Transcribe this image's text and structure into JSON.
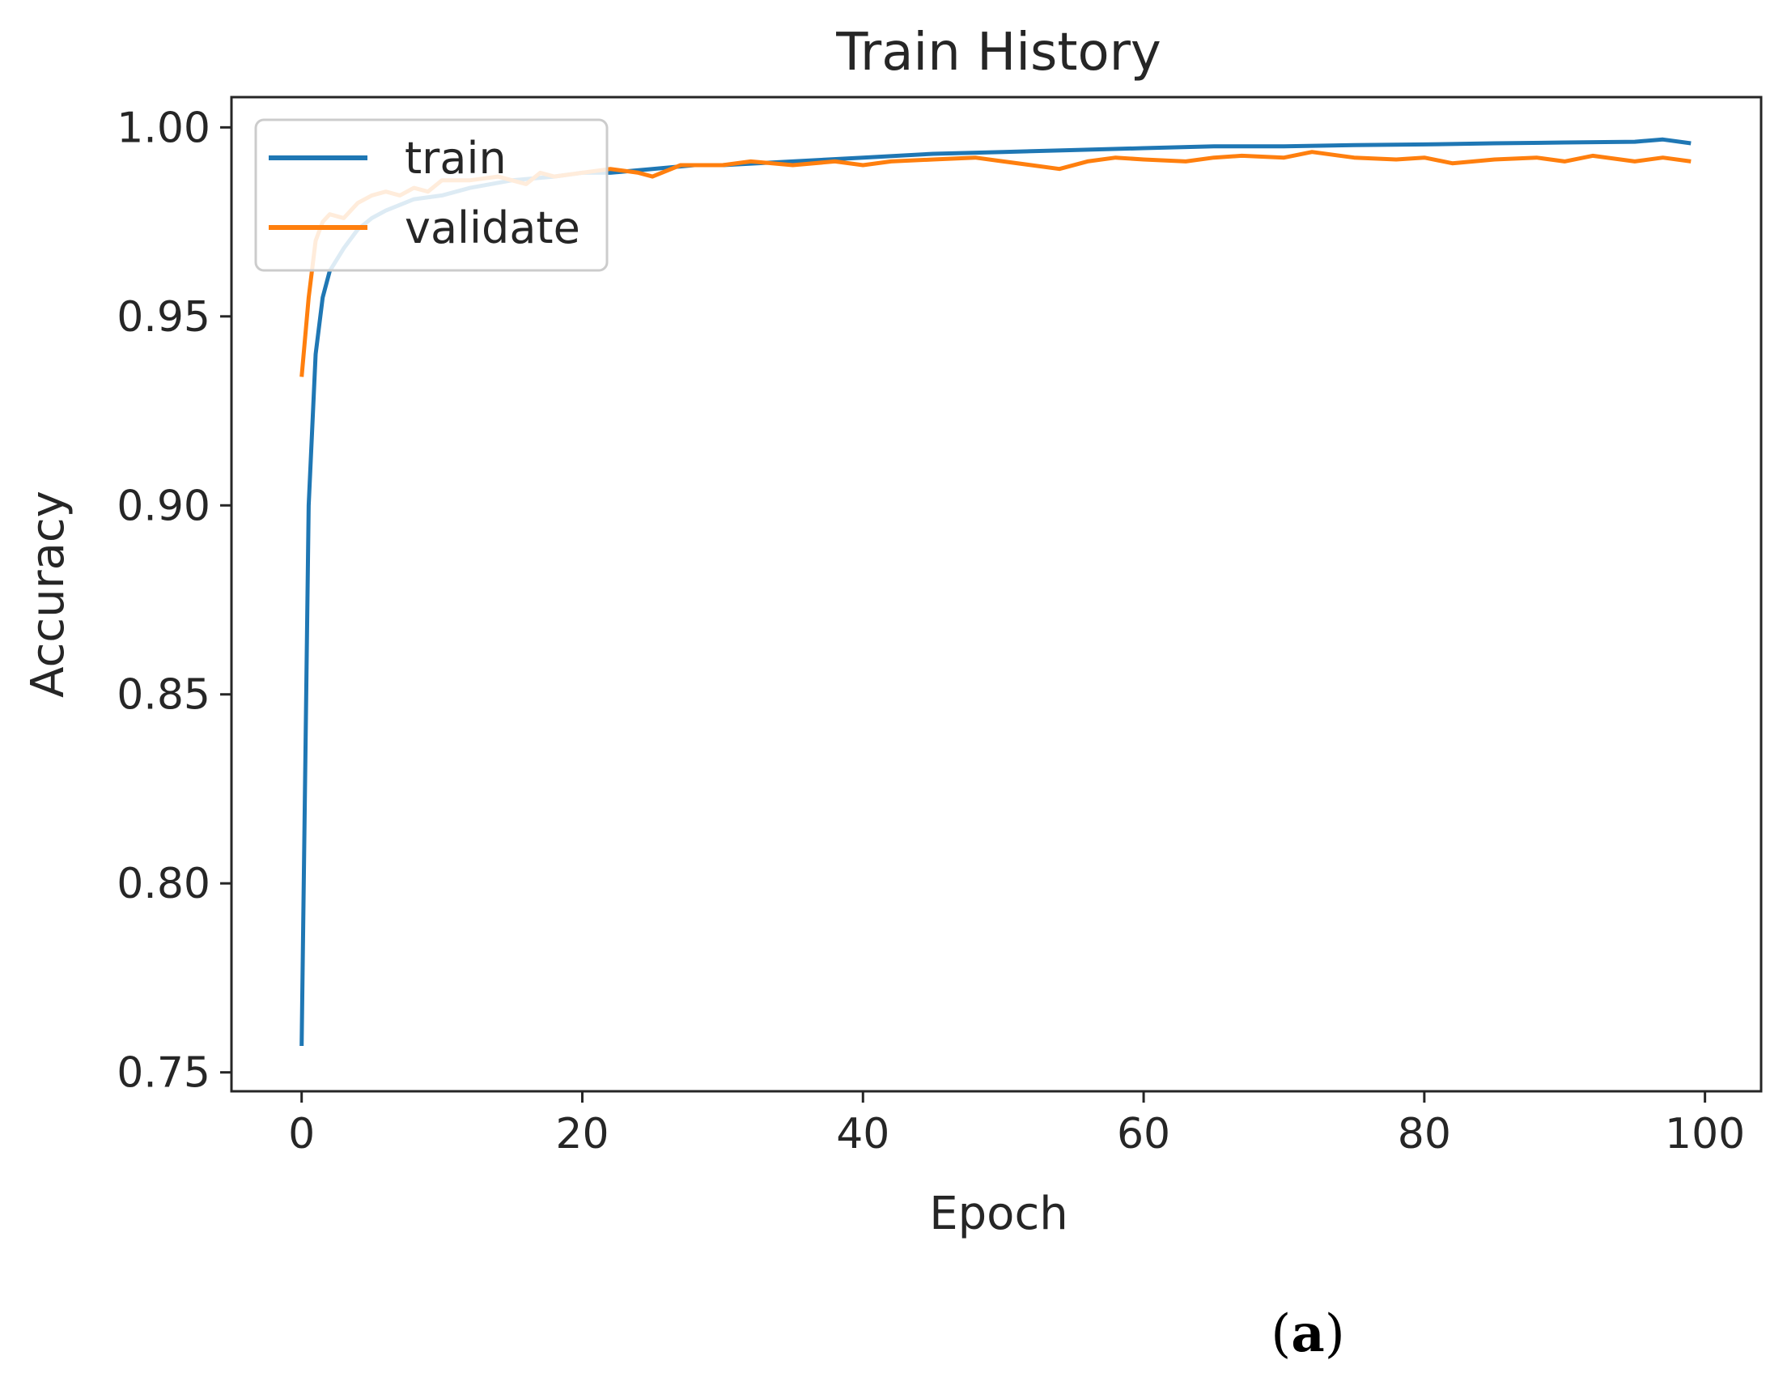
{
  "chart_data": {
    "type": "line",
    "title": "Train History",
    "xlabel": "Epoch",
    "ylabel": "Accuracy",
    "xlim": [
      -5,
      104
    ],
    "ylim": [
      0.745,
      1.008
    ],
    "xticks": [
      0,
      20,
      40,
      60,
      80,
      100
    ],
    "yticks": [
      0.75,
      0.8,
      0.85,
      0.9,
      0.95,
      1.0
    ],
    "xtick_labels": [
      "0",
      "20",
      "40",
      "60",
      "80",
      "100"
    ],
    "ytick_labels": [
      "0.75",
      "0.80",
      "0.85",
      "0.90",
      "0.95",
      "1.00"
    ],
    "grid": false,
    "legend_position": "top-left",
    "series": [
      {
        "name": "train",
        "color": "#1f77b4",
        "x": [
          0,
          0.5,
          1,
          1.5,
          2,
          3,
          4,
          5,
          6,
          8,
          10,
          12,
          15,
          18,
          20,
          22,
          25,
          28,
          30,
          35,
          40,
          45,
          50,
          55,
          60,
          65,
          70,
          75,
          80,
          85,
          90,
          95,
          97,
          99
        ],
        "y": [
          0.757,
          0.9,
          0.94,
          0.955,
          0.962,
          0.968,
          0.973,
          0.976,
          0.978,
          0.981,
          0.982,
          0.984,
          0.986,
          0.987,
          0.988,
          0.988,
          0.989,
          0.99,
          0.99,
          0.991,
          0.992,
          0.993,
          0.9935,
          0.994,
          0.9945,
          0.995,
          0.995,
          0.9953,
          0.9955,
          0.9958,
          0.996,
          0.9962,
          0.9968,
          0.9958
        ]
      },
      {
        "name": "validate",
        "color": "#ff7f0e",
        "x": [
          0,
          0.5,
          1,
          1.5,
          2,
          3,
          4,
          5,
          6,
          7,
          8,
          9,
          10,
          12,
          14,
          16,
          17,
          18,
          20,
          22,
          24,
          25,
          27,
          30,
          32,
          35,
          38,
          40,
          42,
          45,
          48,
          50,
          52,
          54,
          56,
          58,
          60,
          63,
          65,
          67,
          70,
          72,
          75,
          78,
          80,
          82,
          85,
          88,
          90,
          92,
          95,
          97,
          99
        ],
        "y": [
          0.934,
          0.955,
          0.97,
          0.975,
          0.977,
          0.976,
          0.98,
          0.982,
          0.983,
          0.982,
          0.984,
          0.983,
          0.986,
          0.986,
          0.987,
          0.985,
          0.988,
          0.987,
          0.988,
          0.989,
          0.988,
          0.987,
          0.99,
          0.99,
          0.991,
          0.99,
          0.991,
          0.99,
          0.991,
          0.9915,
          0.992,
          0.991,
          0.99,
          0.989,
          0.991,
          0.992,
          0.9915,
          0.991,
          0.992,
          0.9925,
          0.992,
          0.9935,
          0.992,
          0.9915,
          0.992,
          0.9905,
          0.9915,
          0.992,
          0.991,
          0.9925,
          0.991,
          0.992,
          0.991
        ]
      }
    ]
  },
  "panel_label": "a"
}
